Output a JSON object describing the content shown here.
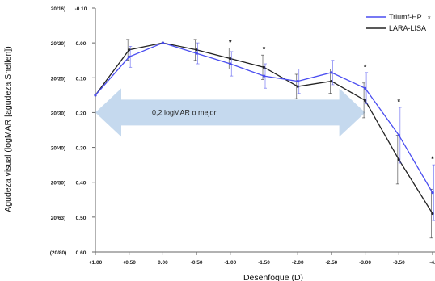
{
  "chart_data": {
    "type": "line",
    "title": "",
    "xlabel": "Desenfoque (D)",
    "ylabel": "Agudeza visual (logMAR [agudeza Snellen])",
    "x": [
      1.0,
      0.5,
      0.0,
      -0.5,
      -1.0,
      -1.5,
      -2.0,
      -2.5,
      -3.0,
      -3.5,
      -4.0
    ],
    "x_tick_labels": [
      "+1.00",
      "+0.50",
      "0.00",
      "-0.50",
      "-1.00",
      "-1.50",
      "-2.00",
      "-2.50",
      "-3.00",
      "-3.50",
      "-4."
    ],
    "ylim": [
      -0.1,
      0.6
    ],
    "y_inverted": true,
    "y_ticks": [
      -0.1,
      0.0,
      0.1,
      0.2,
      0.3,
      0.4,
      0.5,
      0.6
    ],
    "y_tick_labels": [
      "-0.10",
      "0.00",
      "0.10",
      "0.20",
      "0.30",
      "0.40",
      "0.50",
      "0.60"
    ],
    "snellen_labels": [
      "20/16)",
      "20/20)",
      "20/25)",
      "20/30)",
      "20/40)",
      "20/50)",
      "20/63)",
      "(20/80)"
    ],
    "series": [
      {
        "name": "Triumf-HP",
        "color": "#4a4df0",
        "values": [
          0.15,
          0.04,
          0.0,
          0.03,
          0.06,
          0.095,
          0.11,
          0.085,
          0.13,
          0.265,
          0.43
        ],
        "errors": [
          0.0,
          0.03,
          0.0,
          0.03,
          0.035,
          0.035,
          0.035,
          0.035,
          0.045,
          0.08,
          0.08
        ]
      },
      {
        "name": "LARA-LISA",
        "color": "#222222",
        "values": [
          0.15,
          0.02,
          0.0,
          0.02,
          0.045,
          0.07,
          0.125,
          0.11,
          0.165,
          0.335,
          0.49
        ],
        "errors": [
          0.0,
          0.03,
          0.0,
          0.03,
          0.03,
          0.035,
          0.035,
          0.035,
          0.05,
          0.07,
          0.07
        ]
      }
    ],
    "significance_markers": [
      "-1.00",
      "-1.50",
      "-3.00",
      "-3.50",
      "-4.00"
    ],
    "significance_symbol": "*",
    "annotation": {
      "text": "0,2 logMAR o mejor",
      "color": "#c5d9ee",
      "x_range": [
        1.0,
        -3.0
      ],
      "y": 0.2
    },
    "legend_position": "top-right",
    "grid": false
  }
}
